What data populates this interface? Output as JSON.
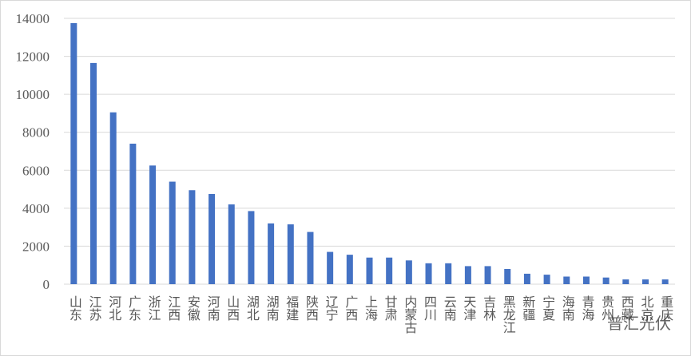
{
  "chart_data": {
    "type": "bar",
    "categories": [
      "山东",
      "江苏",
      "河北",
      "广东",
      "浙江",
      "江西",
      "安徽",
      "河南",
      "山西",
      "湖北",
      "湖南",
      "福建",
      "陕西",
      "辽宁",
      "广西",
      "上海",
      "甘肃",
      "内蒙古",
      "四川",
      "云南",
      "天津",
      "吉林",
      "黑龙江",
      "新疆",
      "宁夏",
      "海南",
      "青海",
      "贵州",
      "西藏",
      "北京",
      "重庆"
    ],
    "values": [
      13750,
      11650,
      9050,
      7400,
      6250,
      5400,
      4950,
      4750,
      4200,
      3850,
      3200,
      3150,
      2750,
      1700,
      1550,
      1400,
      1400,
      1250,
      1100,
      1100,
      950,
      950,
      800,
      550,
      500,
      400,
      400,
      350,
      250,
      250,
      250
    ],
    "color": "#4472c4",
    "ylim": [
      0,
      14000
    ],
    "yticks": [
      0,
      2000,
      4000,
      6000,
      8000,
      10000,
      12000,
      14000
    ],
    "grid": true
  },
  "watermark": "普汇光伏"
}
